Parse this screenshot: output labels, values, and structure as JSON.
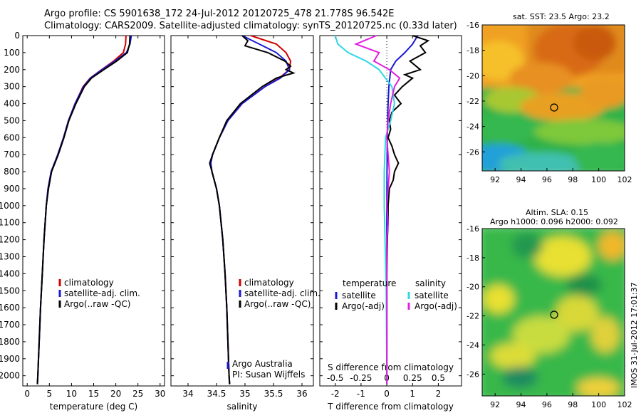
{
  "title": {
    "line1": "Argo profile: CS 5901638_172 24-Jul-2012 20120725_478 21.778S 96.542E",
    "line2": "Climatology: CARS2009. Satellite-adjusted climatology: synTS_20120725.nc (0.33d later)"
  },
  "timestamp": "IMOS 31-Jul-2012 17:01:37",
  "colors": {
    "climatology": "#d40000",
    "satellite": "#1a1ad6",
    "argo": "#000000",
    "sal_satellite": "#2fd7e8",
    "sal_argo": "#e020e0"
  },
  "depth_ticks": [
    0,
    100,
    200,
    300,
    400,
    500,
    600,
    700,
    800,
    900,
    1000,
    1100,
    1200,
    1300,
    1400,
    1500,
    1600,
    1700,
    1800,
    1900,
    2000
  ],
  "chart_data": [
    {
      "type": "line",
      "id": "temperature",
      "xlabel": "temperature (deg C)",
      "ylabel": "",
      "xlim": [
        -1,
        31
      ],
      "ylim": [
        2060,
        0
      ],
      "xticks": [
        0,
        5,
        10,
        15,
        20,
        25,
        30
      ],
      "legend": [
        "climatology",
        "satellite-adj. clim.",
        "Argo(..raw -QC)"
      ],
      "series": [
        {
          "name": "climatology",
          "depth": [
            0,
            50,
            100,
            150,
            200,
            250,
            300,
            400,
            500,
            600,
            700,
            800,
            900,
            1000,
            1200,
            1400,
            1600,
            1800,
            2000,
            2050
          ],
          "values": [
            22.3,
            22.2,
            21.7,
            19.5,
            16.8,
            14.2,
            12.6,
            10.8,
            9.3,
            8.2,
            6.9,
            5.4,
            4.7,
            4.3,
            3.8,
            3.4,
            3.0,
            2.7,
            2.4,
            2.3
          ]
        },
        {
          "name": "satellite-adj. clim.",
          "depth": [
            0,
            50,
            100,
            150,
            200,
            250,
            300,
            400,
            500,
            600,
            700,
            800,
            900,
            1000,
            1200,
            1400,
            1600,
            1800,
            2000,
            2050
          ],
          "values": [
            23.5,
            23.2,
            22.4,
            19.8,
            16.9,
            14.3,
            12.7,
            10.8,
            9.3,
            8.2,
            6.9,
            5.4,
            4.7,
            4.3,
            3.8,
            3.4,
            3.0,
            2.7,
            2.4,
            2.3
          ]
        },
        {
          "name": "Argo(..raw -QC)",
          "depth": [
            0,
            50,
            100,
            150,
            200,
            250,
            300,
            400,
            500,
            600,
            700,
            800,
            900,
            1000,
            1200,
            1400,
            1600,
            1800,
            2000,
            2050
          ],
          "values": [
            23.2,
            23.1,
            22.6,
            20.2,
            17.3,
            14.5,
            12.9,
            11.0,
            9.4,
            8.3,
            7.0,
            5.5,
            4.8,
            4.3,
            3.8,
            3.4,
            3.0,
            2.7,
            2.4,
            2.3
          ]
        }
      ]
    },
    {
      "type": "line",
      "id": "salinity",
      "xlabel": "salinity",
      "ylabel": "",
      "xlim": [
        33.7,
        36.2
      ],
      "ylim": [
        2060,
        0
      ],
      "xticks": [
        34,
        34.5,
        35,
        35.5,
        36
      ],
      "legend": [
        "climatology",
        "satellite-adj. clim.",
        "Argo(..raw -QC)"
      ],
      "annotation": [
        "Argo Australia",
        "PI: Susan Wijffels"
      ],
      "series": [
        {
          "name": "climatology",
          "depth": [
            0,
            50,
            100,
            150,
            200,
            250,
            300,
            400,
            500,
            600,
            700,
            750,
            800,
            900,
            1000,
            1200,
            1400,
            1600,
            1800,
            2000,
            2050
          ],
          "values": [
            35.1,
            35.55,
            35.72,
            35.8,
            35.78,
            35.6,
            35.35,
            34.95,
            34.7,
            34.55,
            34.43,
            34.4,
            34.42,
            34.5,
            34.55,
            34.61,
            34.65,
            34.68,
            34.7,
            34.72,
            34.73
          ]
        },
        {
          "name": "satellite-adj. clim.",
          "depth": [
            0,
            50,
            100,
            150,
            200,
            250,
            300,
            400,
            500,
            600,
            700,
            750,
            800,
            900,
            1000,
            1200,
            1400,
            1600,
            1800,
            2000,
            2050
          ],
          "values": [
            34.95,
            35.25,
            35.55,
            35.72,
            35.78,
            35.62,
            35.35,
            34.95,
            34.7,
            34.55,
            34.43,
            34.4,
            34.42,
            34.5,
            34.55,
            34.61,
            34.65,
            34.68,
            34.7,
            34.72,
            34.73
          ]
        },
        {
          "name": "Argo(..raw -QC)",
          "depth": [
            0,
            30,
            60,
            100,
            150,
            180,
            200,
            220,
            250,
            300,
            400,
            500,
            600,
            700,
            750,
            800,
            900,
            1000,
            1200,
            1400,
            1600,
            1800,
            2000,
            2050
          ],
          "values": [
            34.95,
            35.05,
            35.0,
            35.4,
            35.7,
            35.8,
            35.72,
            35.85,
            35.55,
            35.3,
            34.92,
            34.68,
            34.55,
            34.43,
            34.38,
            34.42,
            34.5,
            34.55,
            34.61,
            34.65,
            34.68,
            34.7,
            34.72,
            34.73
          ]
        }
      ]
    },
    {
      "type": "line",
      "id": "difference",
      "xlabel": "T difference from climatology",
      "xlabel2": "S difference from climatology",
      "ylabel": "",
      "xlim": [
        -2.6,
        2.9
      ],
      "ylim": [
        2060,
        0
      ],
      "xticks": [
        -2,
        -1,
        0,
        1,
        2
      ],
      "xticks2_labels": [
        "-0.5",
        "-0.25",
        "0",
        "0.25",
        "0.5"
      ],
      "legend": {
        "temperature": [
          "satellite",
          "Argo(-adj)"
        ],
        "salinity": [
          "satellite",
          "Argo(-adj)"
        ],
        "temperature_title": "temperature",
        "salinity_title": "salinity"
      },
      "series": [
        {
          "name": "temperature satellite",
          "depth": [
            0,
            50,
            100,
            150,
            200,
            300,
            400,
            500,
            600,
            800,
            1000,
            1500,
            2000,
            2050
          ],
          "values": [
            1.2,
            1.0,
            0.7,
            0.35,
            0.15,
            0.08,
            0.05,
            0.03,
            0.02,
            0.01,
            0.0,
            0.0,
            0.0,
            0.0
          ]
        },
        {
          "name": "temperature Argo(-adj)",
          "depth": [
            0,
            30,
            60,
            100,
            150,
            200,
            230,
            250,
            300,
            350,
            400,
            450,
            500,
            550,
            600,
            650,
            700,
            750,
            800,
            850,
            900,
            1000,
            1100,
            1200,
            1400,
            1600,
            1800,
            2000,
            2050
          ],
          "values": [
            1.0,
            1.6,
            1.3,
            1.5,
            0.9,
            1.3,
            0.7,
            1.0,
            0.6,
            0.3,
            0.55,
            0.2,
            0.1,
            0.15,
            0.05,
            0.2,
            0.3,
            0.45,
            0.3,
            0.25,
            0.1,
            0.05,
            0.05,
            0.02,
            0.0,
            0.0,
            0.0,
            0.0,
            0.0
          ]
        },
        {
          "name": "salinity satellite",
          "depth": [
            0,
            50,
            100,
            150,
            200,
            300,
            400,
            500,
            600,
            800,
            1000,
            1500,
            2000,
            2050
          ],
          "values": [
            -2.0,
            -1.9,
            -1.5,
            -0.8,
            -0.3,
            0.2,
            0.3,
            0.15,
            -0.05,
            -0.1,
            -0.1,
            -0.02,
            0.0,
            0.0
          ]
        },
        {
          "name": "salinity Argo(-adj)",
          "depth": [
            0,
            50,
            100,
            150,
            200,
            250,
            300,
            400,
            500,
            600,
            700,
            800,
            900,
            1000,
            1100,
            1200,
            1400,
            1600,
            1800,
            2000,
            2050
          ],
          "values": [
            -0.4,
            -1.2,
            -0.3,
            -0.5,
            0.1,
            0.5,
            0.3,
            0.15,
            0.05,
            0.0,
            0.05,
            0.1,
            0.05,
            0.0,
            0.05,
            0.0,
            0.0,
            0.0,
            0.0,
            0.0,
            0.0
          ]
        }
      ]
    },
    {
      "type": "heatmap",
      "id": "sst_map",
      "title": "sat. SST: 23.5 Argo: 23.2",
      "xlim": [
        91,
        102
      ],
      "ylim": [
        -27.5,
        -16
      ],
      "xticks": [
        92,
        94,
        96,
        98,
        100,
        102
      ],
      "yticks": [
        -16,
        -18,
        -20,
        -22,
        -24,
        -26
      ],
      "marker": {
        "lon": 96.542,
        "lat": -21.778
      }
    },
    {
      "type": "heatmap",
      "id": "sla_map",
      "title": "Altim. SLA: 0.15",
      "subtitle": "Argo h1000: 0.096 h2000: 0.092",
      "xlim": [
        91,
        102
      ],
      "ylim": [
        -27.5,
        -16
      ],
      "xticks": [
        92,
        94,
        96,
        98,
        100,
        102
      ],
      "yticks": [
        -16,
        -18,
        -20,
        -22,
        -24,
        -26
      ],
      "marker": {
        "lon": 96.542,
        "lat": -21.778
      }
    }
  ]
}
